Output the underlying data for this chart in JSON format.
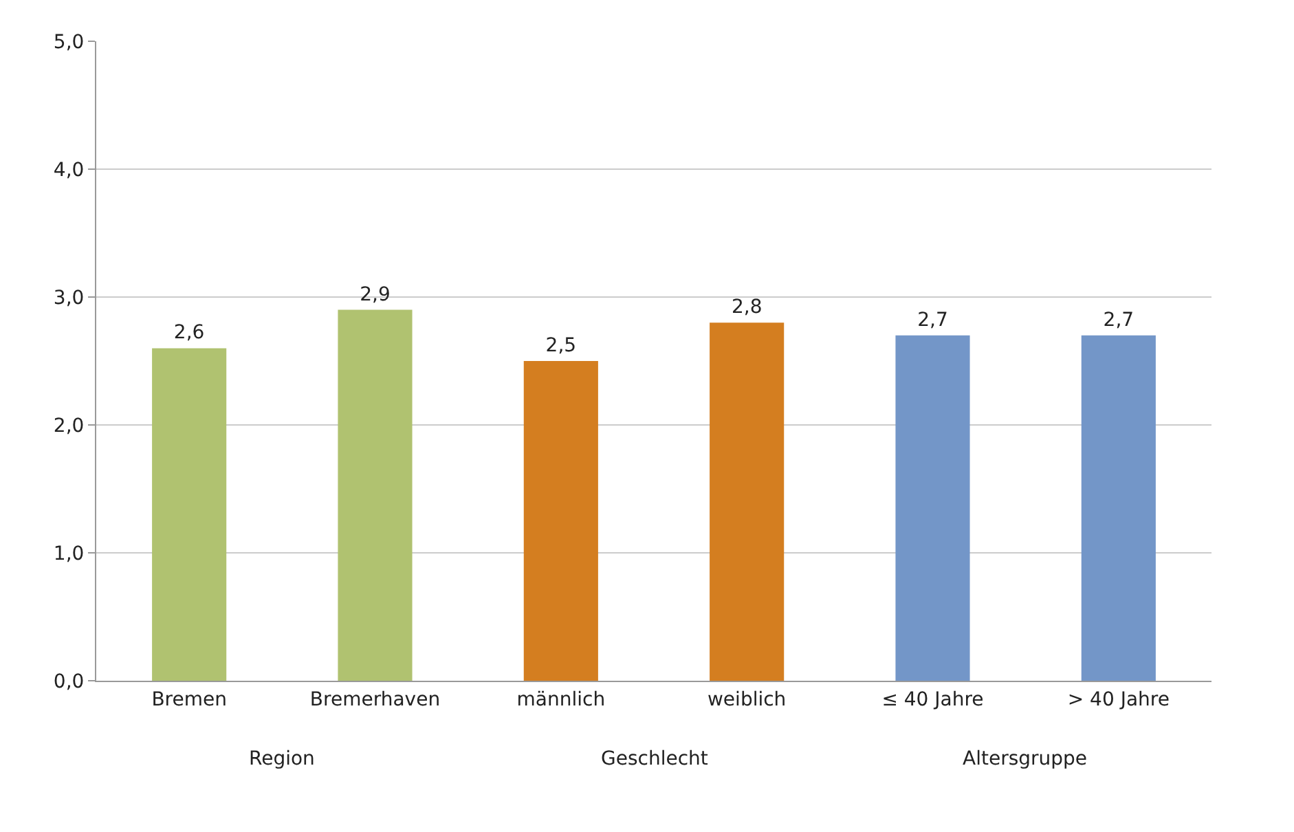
{
  "chart_data": {
    "type": "bar",
    "categories": [
      "Bremen",
      "Bremerhaven",
      "männlich",
      "weiblich",
      "≤ 40 Jahre",
      "> 40 Jahre"
    ],
    "values": [
      2.6,
      2.9,
      2.5,
      2.8,
      2.7,
      2.7
    ],
    "value_labels": [
      "2,6",
      "2,9",
      "2,5",
      "2,8",
      "2,7",
      "2,7"
    ],
    "colors": [
      "#b0c270",
      "#b0c270",
      "#d47e20",
      "#d47e20",
      "#7396c8",
      "#7396c8"
    ],
    "ylim": [
      0,
      5
    ],
    "yticks": [
      {
        "value": 0,
        "label": "0,0"
      },
      {
        "value": 1,
        "label": "1,0"
      },
      {
        "value": 2,
        "label": "2,0"
      },
      {
        "value": 3,
        "label": "3,0"
      },
      {
        "value": 4,
        "label": "4,0"
      },
      {
        "value": 5,
        "label": "5,0"
      }
    ],
    "grid": "y",
    "annotations": [
      "Region",
      "Geschlecht",
      "Altersgruppe"
    ]
  }
}
